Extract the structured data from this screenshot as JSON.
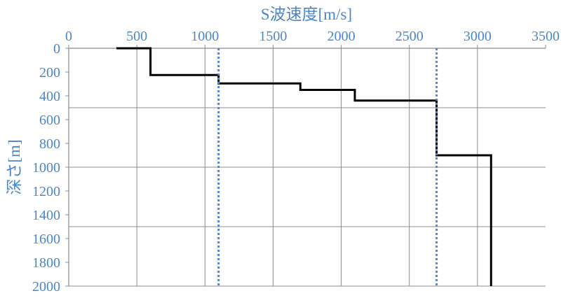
{
  "chart_data": {
    "type": "line",
    "title": "",
    "xlabel": "S波速度[m/s]",
    "ylabel": "深さ[m]",
    "xlim": [
      0,
      3500
    ],
    "ylim": [
      0,
      2000
    ],
    "y_inverted": true,
    "x_axis_position": "top",
    "xticks": [
      "0",
      "500",
      "1000",
      "1500",
      "2000",
      "2500",
      "3000",
      "3500"
    ],
    "yticks": [
      "0",
      "200",
      "400",
      "600",
      "800",
      "1000",
      "1200",
      "1400",
      "1600",
      "1800",
      "2000"
    ],
    "grid": {
      "x_major_step": 500,
      "y_major_step": 500
    },
    "series": [
      {
        "name": "",
        "style": "solid",
        "color": "#000000",
        "points": [
          [
            350,
            0
          ],
          [
            600,
            0
          ],
          [
            600,
            225
          ],
          [
            1100,
            225
          ],
          [
            1100,
            295
          ],
          [
            1700,
            295
          ],
          [
            1700,
            350
          ],
          [
            2100,
            350
          ],
          [
            2100,
            440
          ],
          [
            2700,
            440
          ],
          [
            2700,
            900
          ],
          [
            3100,
            900
          ],
          [
            3100,
            2000
          ]
        ]
      },
      {
        "name": "",
        "style": "dotted",
        "color": "#4a86d8",
        "points": [
          [
            1100,
            0
          ],
          [
            1100,
            2000
          ]
        ]
      },
      {
        "name": "",
        "style": "dotted",
        "color": "#4a86d8",
        "points": [
          [
            2700,
            0
          ],
          [
            2700,
            2000
          ]
        ]
      }
    ],
    "colors": {
      "axis_text": "#4a86c8",
      "grid": "#8c8c8c",
      "axis": "#8c8c8c"
    }
  }
}
